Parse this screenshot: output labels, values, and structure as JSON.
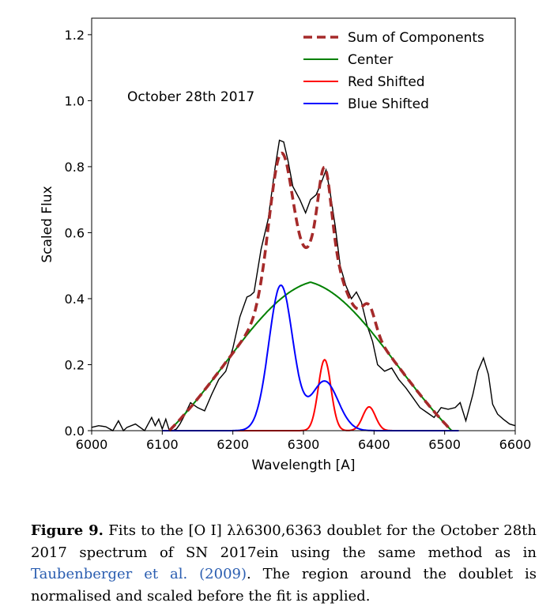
{
  "figure": {
    "annotation": "October 28th 2017",
    "caption": {
      "label": "Figure 9.",
      "text_part1": " Fits to the [O I] λλ6300,6363 doublet for the October 28th 2017 spectrum of SN 2017ein using the same method as in ",
      "citation": "Taubenberger et al. (2009)",
      "text_part2": ". The region around the doublet is normalised and scaled before the fit is applied."
    }
  },
  "chart_data": {
    "type": "line",
    "xlabel": "Wavelength [A]",
    "ylabel": "Scaled Flux",
    "xlim": [
      6000,
      6600
    ],
    "ylim": [
      0,
      1.25
    ],
    "xticks": [
      6000,
      6100,
      6200,
      6300,
      6400,
      6500,
      6600
    ],
    "yticks": [
      0.0,
      0.2,
      0.4,
      0.6,
      0.8,
      1.0,
      1.2
    ],
    "ytick_labels": [
      "0.0",
      "0.2",
      "0.4",
      "0.6",
      "0.8",
      "1.0",
      "1.2"
    ],
    "grid": false,
    "legend_position": "top-right",
    "observed": {
      "color": "#000000",
      "x": [
        6000,
        6010,
        6020,
        6030,
        6038,
        6045,
        6050,
        6062,
        6075,
        6085,
        6090,
        6095,
        6100,
        6105,
        6110,
        6115,
        6120,
        6125,
        6130,
        6140,
        6150,
        6160,
        6170,
        6180,
        6190,
        6200,
        6210,
        6220,
        6225,
        6230,
        6240,
        6250,
        6260,
        6266,
        6272,
        6278,
        6285,
        6295,
        6303,
        6310,
        6318,
        6325,
        6332,
        6338,
        6345,
        6352,
        6360,
        6368,
        6375,
        6382,
        6390,
        6398,
        6405,
        6415,
        6425,
        6435,
        6445,
        6455,
        6465,
        6475,
        6485,
        6495,
        6505,
        6515,
        6522,
        6530,
        6540,
        6547,
        6555,
        6562,
        6568,
        6575,
        6583,
        6592,
        6600
      ],
      "y": [
        0.01,
        0.015,
        0.012,
        0.0,
        0.03,
        0.0,
        0.01,
        0.02,
        0.0,
        0.04,
        0.015,
        0.035,
        0.005,
        0.035,
        0.0,
        0.0,
        0.005,
        0.02,
        0.04,
        0.085,
        0.07,
        0.06,
        0.11,
        0.155,
        0.18,
        0.25,
        0.345,
        0.405,
        0.41,
        0.42,
        0.55,
        0.64,
        0.8,
        0.88,
        0.875,
        0.82,
        0.74,
        0.7,
        0.66,
        0.7,
        0.715,
        0.75,
        0.79,
        0.72,
        0.62,
        0.5,
        0.44,
        0.4,
        0.42,
        0.39,
        0.32,
        0.27,
        0.2,
        0.18,
        0.19,
        0.155,
        0.13,
        0.1,
        0.07,
        0.055,
        0.04,
        0.07,
        0.065,
        0.07,
        0.085,
        0.03,
        0.11,
        0.18,
        0.22,
        0.17,
        0.08,
        0.05,
        0.035,
        0.02,
        0.015
      ]
    },
    "series": [
      {
        "name": "Sum of Components",
        "color": "#a52a2a",
        "style": "dashed"
      },
      {
        "name": "Center",
        "color": "#008000",
        "style": "solid",
        "model": {
          "amp": 0.45,
          "center": 6310,
          "sigma": 122,
          "xmin": 6110,
          "xmax": 6510
        }
      },
      {
        "name": "Red Shifted",
        "color": "#ff0000",
        "style": "solid",
        "model": {
          "components": [
            {
              "amp": 0.215,
              "center": 6330,
              "sigma": 9
            },
            {
              "amp": 0.072,
              "center": 6393,
              "sigma": 9
            }
          ]
        }
      },
      {
        "name": "Blue Shifted",
        "color": "#0000ff",
        "style": "solid",
        "model": {
          "components": [
            {
              "amp": 0.44,
              "center": 6268,
              "sigma": 17
            },
            {
              "amp": 0.15,
              "center": 6330,
              "sigma": 19
            }
          ]
        }
      }
    ]
  }
}
